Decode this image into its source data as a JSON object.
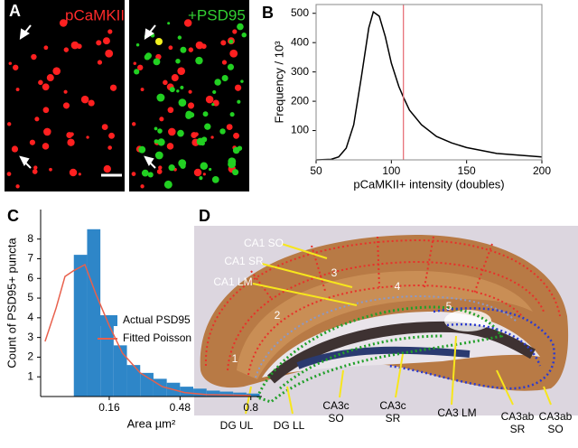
{
  "panel_a": {
    "label": "A",
    "left_caption": "pCaMKII",
    "right_caption": "+PSD95"
  },
  "chart_data": [
    {
      "type": "line",
      "panel_label": "B",
      "x_label": "pCaMKII+ intensity (doubles)",
      "y_label": "Frequency / 10³",
      "x": [
        50,
        60,
        65,
        70,
        75,
        80,
        85,
        88,
        92,
        96,
        100,
        105,
        108,
        112,
        120,
        130,
        140,
        150,
        170,
        200
      ],
      "values": [
        0,
        2,
        10,
        40,
        120,
        280,
        450,
        505,
        490,
        420,
        330,
        250,
        214,
        170,
        120,
        80,
        58,
        42,
        22,
        10
      ],
      "color": "#000000",
      "xlim": [
        50,
        200
      ],
      "ylim": [
        0,
        530
      ],
      "xticks": [
        50,
        100,
        150,
        200
      ],
      "yticks": [
        100,
        200,
        300,
        400,
        500
      ],
      "vline": 108,
      "vline_color": "#e8737a"
    },
    {
      "type": "histogram",
      "panel_label": "C",
      "x_label": "Area µm²",
      "y_label": "Count of PSD95+ puncta",
      "bins": [
        0,
        0.06,
        0.12,
        0.18,
        0.24,
        0.3,
        0.36,
        0.42,
        0.48,
        0.54,
        0.6,
        0.66,
        0.72,
        0.78,
        0.84
      ],
      "series": [
        {
          "name": "Actual PSD95",
          "type": "histogram",
          "color": "#2e86c8",
          "values": [
            7.2,
            8.5,
            3.6,
            2.6,
            1.6,
            1.2,
            0.9,
            0.7,
            0.5,
            0.4,
            0.3,
            0.25,
            0.2,
            0.15
          ]
        },
        {
          "name": "Fitted Poisson",
          "type": "line",
          "color": "#e8604c",
          "x": [
            -0.13,
            -0.08,
            -0.04,
            0.0,
            0.05,
            0.1,
            0.16,
            0.22,
            0.3,
            0.4,
            0.5,
            0.6,
            0.8
          ],
          "values": [
            2.8,
            4.5,
            6.1,
            6.4,
            6.7,
            5.2,
            3.6,
            2.2,
            1.2,
            0.5,
            0.2,
            0.1,
            0.05
          ]
        }
      ],
      "xlim": [
        -0.15,
        0.85
      ],
      "ylim": [
        0,
        9.5
      ],
      "xticks": [
        0.16,
        0.48,
        0.8
      ],
      "yticks": [
        1,
        2,
        3,
        4,
        5,
        6,
        7,
        8
      ]
    }
  ],
  "panel_d": {
    "label": "D",
    "region_labels": [
      [
        "CA1 SO"
      ],
      [
        "CA1 SR"
      ],
      [
        "CA1 LM"
      ],
      [
        "1"
      ],
      [
        "2"
      ],
      [
        "3"
      ],
      [
        "4"
      ],
      [
        "5"
      ],
      [
        "DG UL"
      ],
      [
        "DG LL"
      ],
      [
        "CA3c",
        "SO"
      ],
      [
        "CA3c",
        "SR"
      ],
      [
        "CA3 LM"
      ],
      [
        "CA3ab",
        "SR"
      ],
      [
        "CA3ab",
        "SO"
      ]
    ]
  }
}
